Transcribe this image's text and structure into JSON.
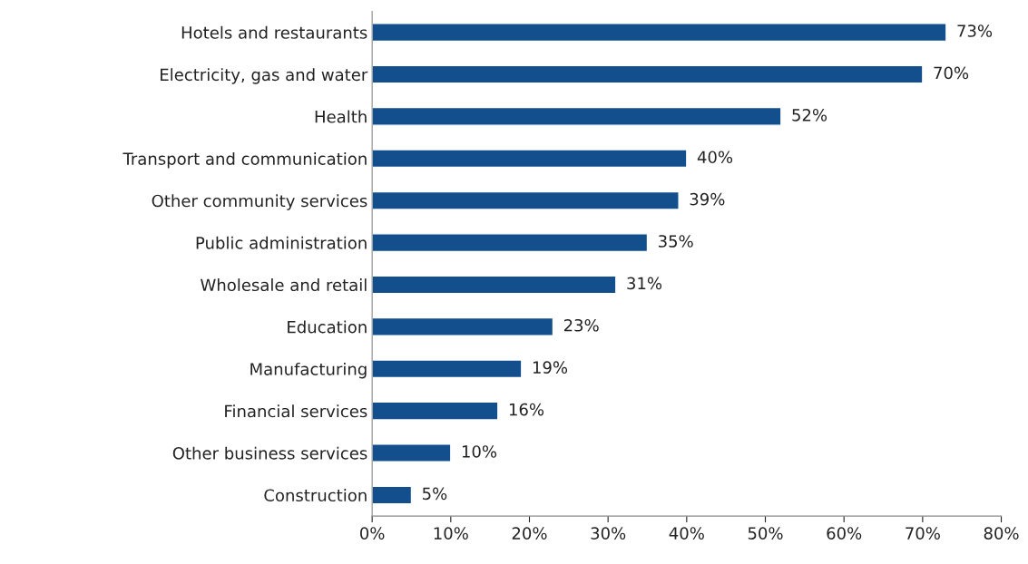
{
  "chart_data": {
    "type": "bar",
    "orientation": "horizontal",
    "categories": [
      "Hotels and restaurants",
      "Electricity, gas and water",
      "Health",
      "Transport and communication",
      "Other community services",
      "Public administration",
      "Wholesale and retail",
      "Education",
      "Manufacturing",
      "Financial services",
      "Other business services",
      "Construction"
    ],
    "values": [
      73,
      70,
      52,
      40,
      39,
      35,
      31,
      23,
      19,
      16,
      10,
      5
    ],
    "value_labels": [
      "73%",
      "70%",
      "52%",
      "40%",
      "39%",
      "35%",
      "31%",
      "23%",
      "19%",
      "16%",
      "10%",
      "5%"
    ],
    "color": "#134f8c",
    "xlim": [
      0,
      80
    ],
    "xticks": [
      {
        "value": 0,
        "label": "0%"
      },
      {
        "value": 10,
        "label": "10%"
      },
      {
        "value": 20,
        "label": "20%"
      },
      {
        "value": 30,
        "label": "30%"
      },
      {
        "value": 40,
        "label": "40%"
      },
      {
        "value": 50,
        "label": "50%"
      },
      {
        "value": 60,
        "label": "60%"
      },
      {
        "value": 70,
        "label": "70%"
      },
      {
        "value": 80,
        "label": "80%"
      }
    ],
    "grid": false,
    "legend": false
  }
}
